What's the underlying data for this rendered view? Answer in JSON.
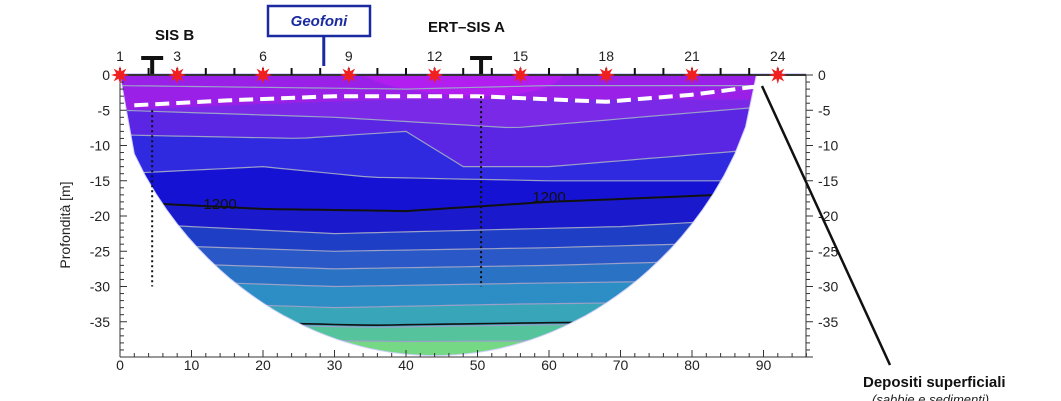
{
  "chart_data": {
    "type": "heatmap",
    "ylabel": "Profondità [m]",
    "xlim": [
      0,
      96
    ],
    "ylim": [
      -40,
      1
    ],
    "x_ticks": [
      0,
      10,
      20,
      30,
      40,
      50,
      60,
      70,
      80,
      90
    ],
    "y_ticks": [
      0,
      -5,
      -10,
      -15,
      -20,
      -25,
      -30,
      -35
    ],
    "electrode_numbers": [
      1,
      3,
      6,
      9,
      12,
      15,
      18,
      21,
      24
    ],
    "electrode_positions": [
      0,
      4,
      8,
      12,
      16,
      20,
      24,
      28,
      32,
      36,
      40,
      44,
      48,
      52,
      56,
      60,
      64,
      68,
      72,
      76,
      80,
      84,
      88,
      92
    ],
    "source_positions": [
      0,
      8,
      20,
      32,
      44,
      56,
      68,
      80,
      92
    ],
    "colors": {
      "band_0": "#9a20e8",
      "band_1": "#7a2ae6",
      "band_2": "#5a26e4",
      "band_3": "#2f2adf",
      "band_4": "#1512d4",
      "band_5": "#1a1acc",
      "band_6": "#1e3ec6",
      "band_7": "#2a58c6",
      "band_8": "#2a72c4",
      "band_9": "#2c8ec4",
      "band_10": "#38a6b8",
      "band_11": "#55c49c",
      "band_12": "#75d884",
      "band_13": "#9ae870",
      "source_marker": "#f02020"
    },
    "contour_labels": [
      {
        "text": "1200",
        "x": 14,
        "y": -19
      },
      {
        "text": "1200",
        "x": 60,
        "y": -18
      }
    ],
    "sis_b": {
      "label": "SIS B",
      "x": 4.5,
      "bottom_depth": -30
    },
    "ert_sis_a": {
      "label": "ERT–SIS A",
      "x": 50.5,
      "bottom_depth": -30
    },
    "geofoni": {
      "label": "Geofoni",
      "x": 28.5
    },
    "surface_deposit_line": [
      [
        2,
        -4.3
      ],
      [
        15,
        -3.6
      ],
      [
        30,
        -3.0
      ],
      [
        50,
        -3.0
      ],
      [
        68,
        -3.8
      ],
      [
        80,
        -2.8
      ],
      [
        90,
        -1.5
      ]
    ],
    "depositi": {
      "label": "Depositi superficiali",
      "sublabel": "(sabbie e sedimenti)"
    }
  }
}
